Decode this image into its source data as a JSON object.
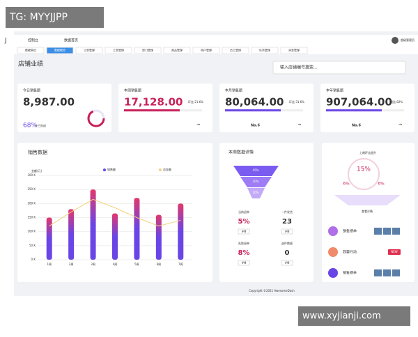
{
  "watermark": {
    "top": "TG: MYYJJPP",
    "bottom": "www.xyjianji.com"
  },
  "topbar": {
    "home": "控制台",
    "breadcrumb": "数据首页",
    "user": "超级管理员"
  },
  "tabs": [
    "数据首页",
    "数据概览",
    "订单管理",
    "工单管理",
    "部门管理",
    "商品管理",
    "用户管理",
    "员工管理",
    "任务管理",
    "消息管理"
  ],
  "page_title": "店铺业绩",
  "search_placeholder": "输入店铺编号搜索...",
  "cards": [
    {
      "label": "今日销售额",
      "value": "8,987.00",
      "rate": "68%",
      "note": "今日完成"
    },
    {
      "label": "本周销售额",
      "value": "17,128.00",
      "note": "环比 21.6%"
    },
    {
      "label": "本月销售额",
      "value": "80,064.00",
      "rank": "No.6",
      "note": "环比 31.6%"
    },
    {
      "label": "本年销售额",
      "value": "907,064.00",
      "rank": "No.6",
      "note": "同比 82%"
    }
  ],
  "chart_data": {
    "type": "bar",
    "title": "销售数据",
    "y_label": "金额(元)",
    "categories": [
      "1周",
      "2周",
      "3周",
      "4周",
      "5周",
      "6周",
      "7周"
    ],
    "series": [
      {
        "name": "销售额",
        "color": "#6a45e6",
        "gradient_color": "#e2386c",
        "values": [
          150,
          180,
          250,
          165,
          220,
          160,
          200
        ]
      },
      {
        "name": "总金额",
        "type": "line",
        "color": "#f2d27c",
        "values": [
          120,
          170,
          215,
          185,
          150,
          120,
          140
        ]
      }
    ],
    "ylim": [
      0,
      300
    ],
    "yticks": [
      {
        "value": 0,
        "label": "0 K"
      },
      {
        "value": 50,
        "label": "50 K"
      },
      {
        "value": 100,
        "label": "100 K"
      },
      {
        "value": 150,
        "label": "150 K"
      },
      {
        "value": 200,
        "label": "200 K"
      },
      {
        "value": 250,
        "label": "250 K"
      },
      {
        "value": 300,
        "label": "300 K"
      }
    ],
    "grid": true
  },
  "week": {
    "title": "本周数据详情",
    "funnel": [
      "45%",
      "30%",
      "20%"
    ],
    "detail": "详情",
    "stats": [
      {
        "label": "当前退单",
        "value": "5%"
      },
      {
        "label": "一件发货",
        "value": "23"
      },
      {
        "label": "失败退单",
        "value": "8%"
      },
      {
        "label": "退件数量",
        "value": "0"
      }
    ]
  },
  "right": {
    "title": "上期环比提升",
    "center": "15%",
    "left": "6%",
    "right_value": "6%",
    "button": "查看详情",
    "list": [
      {
        "label": "销售榜单",
        "color": "#b06ee8"
      },
      {
        "label": "我要行动",
        "color": "#f08a6a",
        "badge": "NEW"
      },
      {
        "label": "销售榜单",
        "color": "#6a45e6"
      }
    ]
  },
  "footer": "Copyright ©2021 AwesomeDash"
}
